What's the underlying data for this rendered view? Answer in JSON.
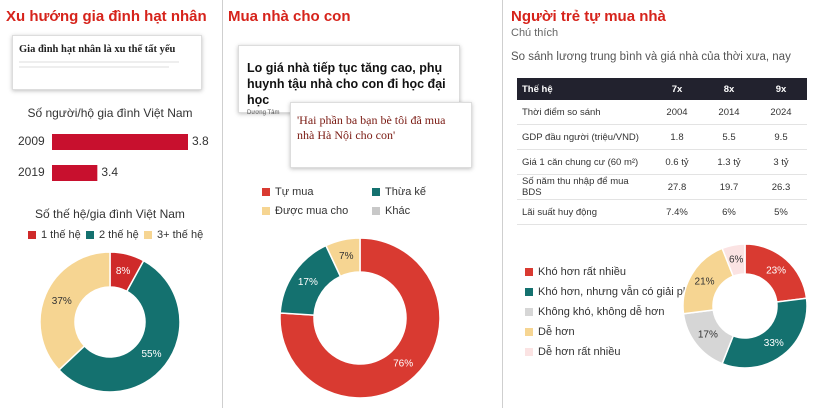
{
  "panels": [
    {
      "title": "Xu hướng gia đình hạt nhân",
      "clip": {
        "headline": "Gia đình hạt nhân là xu thế tất yếu"
      }
    },
    {
      "title": "Mua nhà cho con",
      "clip": {
        "headline": "Lo giá nhà tiếp tục tăng cao, phụ huynh tậu nhà cho con đi học đại học",
        "author": "Dương Tâm"
      },
      "clip2": {
        "headline": "'Hai phần ba bạn bè tôi đã mua nhà Hà Nội cho con'"
      }
    },
    {
      "title": "Người trẻ tự mua nhà",
      "note": "Chú thích",
      "subtitle": "So sánh lương trung bình và giá nhà của thời xưa, nay",
      "table": {
        "header": [
          "Thế hệ",
          "7x",
          "8x",
          "9x"
        ],
        "rows": [
          [
            "Thời điểm so sánh",
            "2004",
            "2014",
            "2024"
          ],
          [
            "GDP đầu người (triệu/VND)",
            "1.8",
            "5.5",
            "9.5"
          ],
          [
            "Giá 1 căn chung cư (60 m²)",
            "0.6 tỷ",
            "1.3 tỷ",
            "3 tỷ"
          ],
          [
            "Số năm thu nhập để mua BDS",
            "27.8",
            "19.7",
            "26.3"
          ],
          [
            "Lãi suất huy động",
            "7.4%",
            "6%",
            "5%"
          ]
        ]
      }
    }
  ],
  "chart_data": [
    {
      "type": "bar",
      "horizontal": true,
      "title": "Số người/hộ gia đình Việt Nam",
      "categories": [
        "2009",
        "2019"
      ],
      "values": [
        3.8,
        3.4
      ],
      "color": "#c8102e",
      "xlim": [
        3.2,
        3.8
      ]
    },
    {
      "type": "donut",
      "title": "Số thế hệ/gia đình Việt Nam",
      "categories": [
        "1 thế hệ",
        "2 thế hệ",
        "3+ thế hệ"
      ],
      "values": [
        8,
        55,
        37
      ],
      "value_labels": [
        "8%",
        "55%",
        "37%"
      ],
      "colors": [
        "#cf2a2a",
        "#14716f",
        "#f6d592"
      ]
    },
    {
      "type": "donut",
      "categories": [
        "Tự mua",
        "Thừa kế",
        "Được mua cho",
        "Khác"
      ],
      "values": [
        76,
        17,
        7,
        0
      ],
      "value_labels": [
        "76%",
        "17%",
        "7%",
        null
      ],
      "colors": [
        "#d93a31",
        "#14716f",
        "#f6d592",
        "#c8c8c8"
      ]
    },
    {
      "type": "donut",
      "categories": [
        "Khó hơn rất nhiều",
        "Khó hơn, nhưng vẫn có giải pháp",
        "Không khó, không dễ hơn",
        "Dễ hơn",
        "Dễ hơn rất nhiều"
      ],
      "values": [
        23,
        33,
        17,
        21,
        6
      ],
      "value_labels": [
        "23%",
        "33%",
        "17%",
        "21%",
        "6%"
      ],
      "colors": [
        "#d93a31",
        "#14716f",
        "#d6d6d6",
        "#f6d592",
        "#fbe3e3"
      ]
    }
  ]
}
